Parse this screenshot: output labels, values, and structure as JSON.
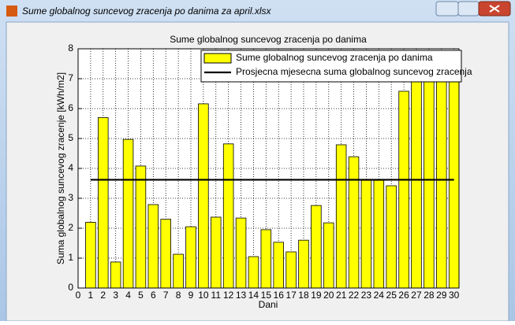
{
  "window": {
    "title": "Sume globalnog suncevog zracenja po danima za april.xlsx"
  },
  "chart_data": {
    "type": "bar",
    "title": "Sume globalnog suncevog zracenja po danima",
    "x_label": "Dani",
    "y_label": "Suma globalnog suncevog zracenje [kWh/m2]",
    "x": [
      1,
      2,
      3,
      4,
      5,
      6,
      7,
      8,
      9,
      10,
      11,
      12,
      13,
      14,
      15,
      16,
      17,
      18,
      19,
      20,
      21,
      22,
      23,
      24,
      25,
      26,
      27,
      28,
      29,
      30
    ],
    "series": [
      {
        "name": "Sume globalnog suncevog zracenja po danima",
        "type": "bar",
        "color": "#ffff00",
        "values": [
          2.2,
          5.7,
          0.87,
          4.97,
          4.08,
          2.79,
          2.3,
          1.13,
          2.05,
          6.16,
          2.37,
          4.82,
          2.34,
          1.05,
          1.95,
          1.53,
          1.21,
          1.6,
          2.76,
          2.18,
          4.79,
          4.39,
          3.6,
          3.6,
          3.42,
          6.58,
          7.03,
          7.03,
          6.95,
          7.08
        ]
      },
      {
        "name": "Prosjecna mjesecna suma globalnog suncevog zracenja",
        "type": "line",
        "color": "#000000",
        "x": [
          1,
          30
        ],
        "values": [
          3.62,
          3.62
        ]
      }
    ],
    "xlim": [
      0,
      30.4
    ],
    "ylim": [
      0,
      8
    ],
    "xticks": [
      0,
      1,
      2,
      3,
      4,
      5,
      6,
      7,
      8,
      9,
      10,
      11,
      12,
      13,
      14,
      15,
      16,
      17,
      18,
      19,
      20,
      21,
      22,
      23,
      24,
      25,
      26,
      27,
      28,
      29,
      30
    ],
    "yticks": [
      0,
      1,
      2,
      3,
      4,
      5,
      6,
      7,
      8
    ],
    "grid": true,
    "legend": "top-right"
  }
}
